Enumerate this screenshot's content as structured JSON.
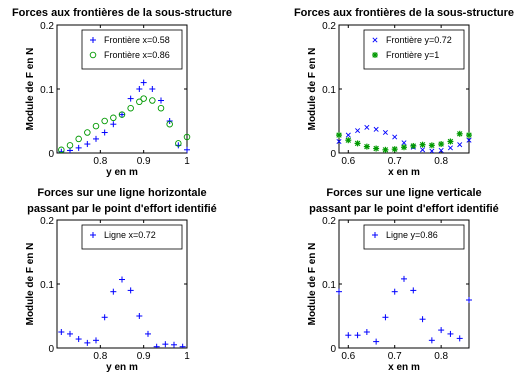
{
  "chart_data": [
    {
      "type": "scatter",
      "title": [
        "Forces aux frontières de la sous-structure"
      ],
      "xlabel": "y en m",
      "ylabel": "Module de F en N",
      "xlim": [
        0.7,
        1.0
      ],
      "ylim": [
        0,
        0.2
      ],
      "xticks": [
        0.8,
        0.9,
        1
      ],
      "yticks": [
        0,
        0.1,
        0.2
      ],
      "xtick_labels": [
        "0.8",
        "0.9",
        "1"
      ],
      "ytick_labels": [
        "0",
        "0.1",
        "0.2"
      ],
      "legend_position": "top-right",
      "series": [
        {
          "name": "Frontière x=0.58",
          "marker": "plus",
          "color": "#0000ff",
          "points": [
            [
              0.71,
              0.002
            ],
            [
              0.73,
              0.004
            ],
            [
              0.75,
              0.008
            ],
            [
              0.77,
              0.014
            ],
            [
              0.79,
              0.022
            ],
            [
              0.81,
              0.032
            ],
            [
              0.83,
              0.045
            ],
            [
              0.85,
              0.06
            ],
            [
              0.87,
              0.085
            ],
            [
              0.89,
              0.1
            ],
            [
              0.9,
              0.11
            ],
            [
              0.92,
              0.1
            ],
            [
              0.94,
              0.082
            ],
            [
              0.96,
              0.05
            ],
            [
              0.98,
              0.012
            ],
            [
              1.0,
              0.005
            ]
          ]
        },
        {
          "name": "Frontière x=0.86",
          "marker": "circle",
          "color": "#009900",
          "points": [
            [
              0.71,
              0.005
            ],
            [
              0.73,
              0.012
            ],
            [
              0.75,
              0.022
            ],
            [
              0.77,
              0.032
            ],
            [
              0.79,
              0.042
            ],
            [
              0.81,
              0.05
            ],
            [
              0.83,
              0.055
            ],
            [
              0.85,
              0.06
            ],
            [
              0.87,
              0.07
            ],
            [
              0.89,
              0.08
            ],
            [
              0.9,
              0.085
            ],
            [
              0.92,
              0.082
            ],
            [
              0.94,
              0.07
            ],
            [
              0.96,
              0.045
            ],
            [
              0.98,
              0.015
            ],
            [
              1.0,
              0.025
            ]
          ]
        }
      ]
    },
    {
      "type": "scatter",
      "title": [
        "Forces aux frontières de la sous-structure"
      ],
      "xlabel": "x en m",
      "ylabel": "Module de F en N",
      "xlim": [
        0.58,
        0.86
      ],
      "ylim": [
        0,
        0.2
      ],
      "xticks": [
        0.6,
        0.7,
        0.8
      ],
      "yticks": [
        0,
        0.1,
        0.2
      ],
      "xtick_labels": [
        "0.6",
        "0.7",
        "0.8"
      ],
      "ytick_labels": [
        "0",
        "0.1",
        "0.2"
      ],
      "legend_position": "top-right",
      "series": [
        {
          "name": "Frontière y=0.72",
          "marker": "x",
          "color": "#0000ff",
          "points": [
            [
              0.58,
              0.018
            ],
            [
              0.6,
              0.028
            ],
            [
              0.62,
              0.035
            ],
            [
              0.64,
              0.04
            ],
            [
              0.66,
              0.037
            ],
            [
              0.68,
              0.032
            ],
            [
              0.7,
              0.025
            ],
            [
              0.72,
              0.016
            ],
            [
              0.74,
              0.009
            ],
            [
              0.76,
              0.005
            ],
            [
              0.78,
              0.003
            ],
            [
              0.8,
              0.004
            ],
            [
              0.82,
              0.008
            ],
            [
              0.84,
              0.013
            ],
            [
              0.86,
              0.02
            ]
          ]
        },
        {
          "name": "Frontière y=1",
          "marker": "star",
          "color": "#009900",
          "points": [
            [
              0.58,
              0.028
            ],
            [
              0.6,
              0.02
            ],
            [
              0.62,
              0.015
            ],
            [
              0.64,
              0.01
            ],
            [
              0.66,
              0.007
            ],
            [
              0.68,
              0.005
            ],
            [
              0.7,
              0.006
            ],
            [
              0.72,
              0.009
            ],
            [
              0.74,
              0.011
            ],
            [
              0.76,
              0.013
            ],
            [
              0.78,
              0.012
            ],
            [
              0.8,
              0.014
            ],
            [
              0.82,
              0.018
            ],
            [
              0.84,
              0.03
            ],
            [
              0.86,
              0.028
            ]
          ]
        }
      ]
    },
    {
      "type": "scatter",
      "title": [
        "Forces sur une ligne horizontale",
        "passant par le point d'effort identifié"
      ],
      "xlabel": "y en m",
      "ylabel": "Module de F en N",
      "xlim": [
        0.7,
        1.0
      ],
      "ylim": [
        0,
        0.2
      ],
      "xticks": [
        0.8,
        0.9,
        1
      ],
      "yticks": [
        0,
        0.1,
        0.2
      ],
      "xtick_labels": [
        "0.8",
        "0.9",
        "1"
      ],
      "ytick_labels": [
        "0",
        "0.1",
        "0.2"
      ],
      "legend_position": "top-right",
      "series": [
        {
          "name": "Ligne x=0.72",
          "marker": "plus",
          "color": "#0000ff",
          "points": [
            [
              0.71,
              0.025
            ],
            [
              0.73,
              0.022
            ],
            [
              0.75,
              0.014
            ],
            [
              0.77,
              0.008
            ],
            [
              0.79,
              0.012
            ],
            [
              0.81,
              0.048
            ],
            [
              0.83,
              0.088
            ],
            [
              0.85,
              0.107
            ],
            [
              0.87,
              0.09
            ],
            [
              0.89,
              0.05
            ],
            [
              0.91,
              0.022
            ],
            [
              0.93,
              0.002
            ],
            [
              0.95,
              0.006
            ],
            [
              0.97,
              0.005
            ],
            [
              0.99,
              0.002
            ]
          ]
        }
      ]
    },
    {
      "type": "scatter",
      "title": [
        "Forces sur une ligne verticale",
        "passant par le point d'effort identifié"
      ],
      "xlabel": "x en m",
      "ylabel": "Module de F en N",
      "xlim": [
        0.58,
        0.86
      ],
      "ylim": [
        0,
        0.2
      ],
      "xticks": [
        0.6,
        0.7,
        0.8
      ],
      "yticks": [
        0,
        0.1,
        0.2
      ],
      "xtick_labels": [
        "0.6",
        "0.7",
        "0.8"
      ],
      "ytick_labels": [
        "0",
        "0.1",
        "0.2"
      ],
      "legend_position": "top-right",
      "series": [
        {
          "name": "Ligne y=0.86",
          "marker": "plus",
          "color": "#0000ff",
          "points": [
            [
              0.58,
              0.088
            ],
            [
              0.6,
              0.02
            ],
            [
              0.62,
              0.02
            ],
            [
              0.64,
              0.025
            ],
            [
              0.66,
              0.01
            ],
            [
              0.68,
              0.048
            ],
            [
              0.7,
              0.088
            ],
            [
              0.72,
              0.108
            ],
            [
              0.74,
              0.09
            ],
            [
              0.76,
              0.045
            ],
            [
              0.78,
              0.012
            ],
            [
              0.8,
              0.028
            ],
            [
              0.82,
              0.022
            ],
            [
              0.84,
              0.015
            ],
            [
              0.86,
              0.075
            ]
          ]
        }
      ]
    }
  ]
}
